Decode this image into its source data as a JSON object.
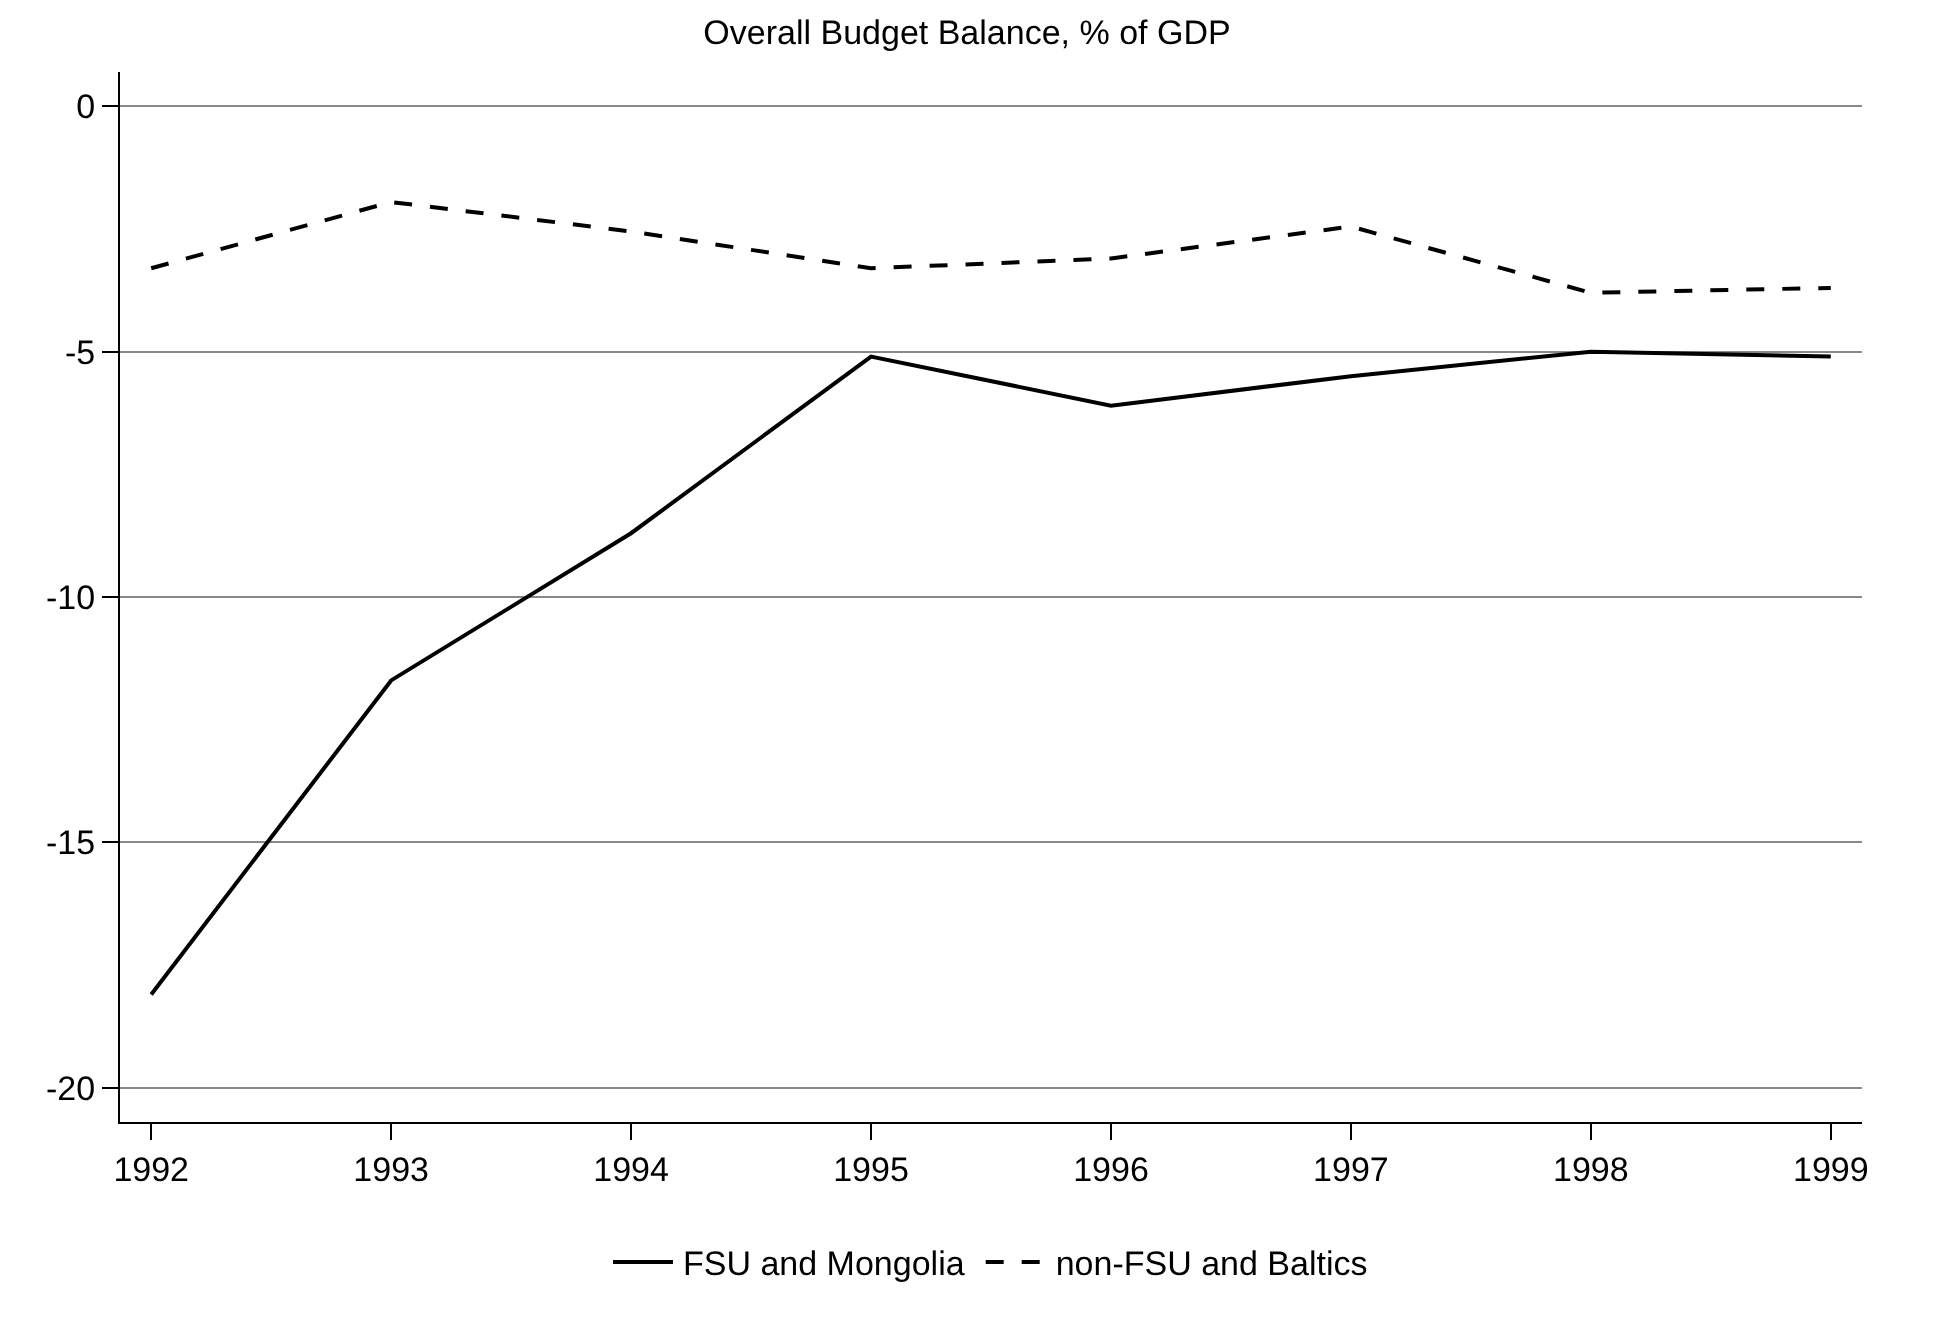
{
  "chart_data": {
    "type": "line",
    "title": "Overall Budget Balance, % of GDP",
    "x": [
      1992,
      1993,
      1994,
      1995,
      1996,
      1997,
      1998,
      1999
    ],
    "series": [
      {
        "name": "FSU and Mongolia",
        "color": "#000000",
        "line_style": "solid",
        "values": [
          -18.1,
          -11.7,
          -8.7,
          -5.1,
          -6.1,
          -5.5,
          -5.0,
          -5.1
        ]
      },
      {
        "name": "non-FSU and Baltics",
        "color": "#000000",
        "line_style": "dashed",
        "values": [
          -3.3,
          -1.95,
          -2.55,
          -3.3,
          -3.1,
          -2.45,
          -3.8,
          -3.7
        ]
      }
    ],
    "xlim": [
      1991.87,
      1999.13
    ],
    "xticks": [
      1992,
      1993,
      1994,
      1995,
      1996,
      1997,
      1998,
      1999
    ],
    "ylim": [
      -20.7,
      0.7
    ],
    "yticks": [
      0,
      -5,
      -10,
      -15,
      -20
    ],
    "grid": "y",
    "legend": "bottom",
    "marker": "none"
  }
}
